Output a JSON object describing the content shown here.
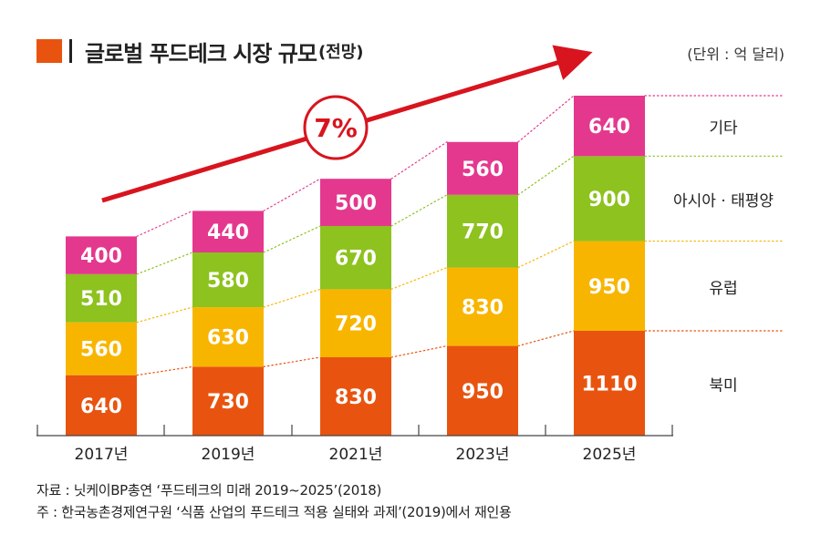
{
  "title": "글로벌 푸드테크 시장 규모",
  "title_suffix": "(전망)",
  "unit": "(단위 : 억 달러)",
  "growth_label": "7%",
  "chart_data": {
    "type": "bar",
    "stacked": true,
    "title": "글로벌 푸드테크 시장 규모(전망)",
    "categories": [
      "2017년",
      "2019년",
      "2021년",
      "2023년",
      "2025년"
    ],
    "series": [
      {
        "name": "북미",
        "color": "#e8540f",
        "values": [
          640,
          730,
          830,
          950,
          1110
        ]
      },
      {
        "name": "유럽",
        "color": "#f8b500",
        "values": [
          560,
          630,
          720,
          830,
          950
        ]
      },
      {
        "name": "아시아 · 태평양",
        "color": "#8dc21f",
        "values": [
          510,
          580,
          670,
          770,
          900
        ]
      },
      {
        "name": "기타",
        "color": "#e4388e",
        "values": [
          400,
          440,
          500,
          560,
          640
        ]
      }
    ],
    "ylim": [
      0,
      3600
    ],
    "xlabel": "",
    "ylabel": ""
  },
  "sources": [
    "자료 : 닛케이BP총연 ‘푸드테크의 미래 2019~2025’(2018)",
    "주 : 한국농촌경제연구원 ‘식품 산업의 푸드테크 적용 실태와 과제’(2019)에서 재인용"
  ],
  "colors": {
    "arrow": "#d8141e",
    "axis": "#444444"
  }
}
